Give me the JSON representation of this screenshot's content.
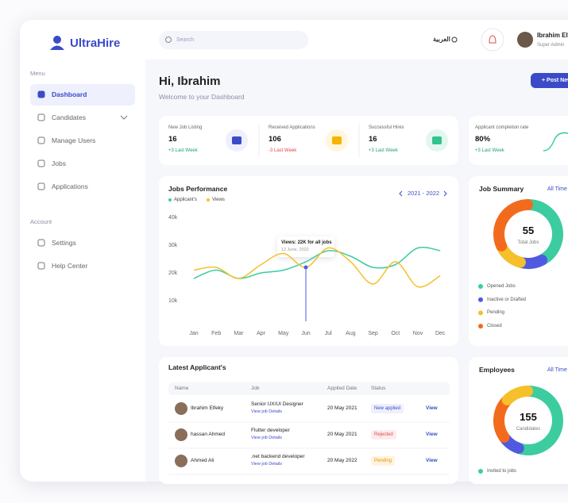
{
  "brand": "UltraHire",
  "search_placeholder": "Search",
  "language": "العربية",
  "user": {
    "name": "Ibrahim Elfeky",
    "role": "Super Admin"
  },
  "sidebar": [
    {
      "heading": "Menu",
      "items": [
        "Dashboard",
        "Candidates",
        "Manage Users",
        "Jobs",
        "Applications"
      ]
    },
    {
      "heading": "Account",
      "items": [
        "Settings",
        "Help Center"
      ]
    }
  ],
  "greeting": "Hi, Ibrahim",
  "welcome": "Welcome to your Dashboard",
  "post_button": "+ Post New Job",
  "stats": [
    {
      "label": "New Job Listing",
      "value": "16",
      "change": "+3 Last Week",
      "color": "#22a06b",
      "icon_bg": "#eef0fd",
      "icon_color": "#3b4bc8"
    },
    {
      "label": "Received Applications",
      "value": "106",
      "change": "-3 Last Week",
      "color": "#e5484d",
      "icon_bg": "#fff6dc",
      "icon_color": "#f5b400"
    },
    {
      "label": "Successful Hires",
      "value": "16",
      "change": "+3 Last Week",
      "color": "#22a06b",
      "icon_bg": "#e3f7ef",
      "icon_color": "#34c38f"
    },
    {
      "label": "Applicant completion rate",
      "value": "80%",
      "change": "+3 Last Week",
      "color": "#22a06b"
    }
  ],
  "chart_data": [
    {
      "type": "line",
      "title": "Jobs Performance",
      "period": "2021 - 2022",
      "categories": [
        "Jan",
        "Feb",
        "Mar",
        "Apr",
        "May",
        "Jun",
        "Jul",
        "Aug",
        "Sep",
        "Oct",
        "Nov",
        "Dec"
      ],
      "series": [
        {
          "name": "Applicant's",
          "color": "#3ccca0",
          "values": [
            18000,
            21000,
            18000,
            20000,
            21000,
            24000,
            28000,
            26000,
            22000,
            23000,
            29000,
            28000
          ]
        },
        {
          "name": "Views",
          "color": "#f5c02b",
          "values": [
            21000,
            22000,
            18000,
            23000,
            27000,
            22000,
            29000,
            24000,
            16000,
            24000,
            15000,
            19000
          ]
        }
      ],
      "ylim": [
        0,
        45000
      ],
      "yticks": [
        {
          "value": 10000,
          "label": "10k"
        },
        {
          "value": 20000,
          "label": "20k"
        },
        {
          "value": 30000,
          "label": "30k"
        },
        {
          "value": 40000,
          "label": "40k"
        }
      ],
      "tooltip": {
        "title": "Views: 22K for all jobs",
        "date": "12 June, 2022"
      }
    },
    {
      "type": "donut",
      "title": "Job Summary",
      "filter": "All Time",
      "total": "55",
      "total_label": "Total Jobs",
      "categories": [
        "Opened Jobs",
        "Inactive or Drafted",
        "Pending",
        "Closed"
      ],
      "colors": [
        "#3ccca0",
        "#4f5ae0",
        "#f5c02b",
        "#f26b1d"
      ],
      "values": [
        42,
        12,
        14,
        32
      ]
    },
    {
      "type": "donut",
      "title": "Employees",
      "filter": "All Time",
      "total": "155",
      "total_label": "Candidates",
      "categories": [
        "Invited to jobs",
        null,
        null,
        null
      ],
      "colors": [
        "#3ccca0",
        "#4f5ae0",
        "#f26b1d",
        "#f5c02b"
      ],
      "values": [
        55,
        10,
        22,
        13
      ]
    }
  ],
  "table": {
    "title": "Latest Applicant's",
    "columns": [
      "Name",
      "Job",
      "Applied Date",
      "Status"
    ],
    "rows": [
      {
        "name": "Ibrahim Elfeky",
        "job": "Senior UX/UI Designer",
        "link": "View job Details",
        "date": "20 May 2021",
        "status": "New applied",
        "status_color": "#3b4bc8",
        "status_bg": "#eef0fd",
        "action": "View"
      },
      {
        "name": "hassan Ahmed",
        "job": "Flutter developer",
        "link": "View job Details",
        "date": "20 May 2021",
        "status": "Rejected",
        "status_color": "#e5484d",
        "status_bg": "#fdecec",
        "action": "View"
      },
      {
        "name": "Ahmed Ali",
        "job": ".net backend developer",
        "link": "View job Details",
        "date": "20 May 2022",
        "status": "Pending",
        "status_color": "#f08c00",
        "status_bg": "#fff3e0",
        "action": "View"
      }
    ]
  }
}
